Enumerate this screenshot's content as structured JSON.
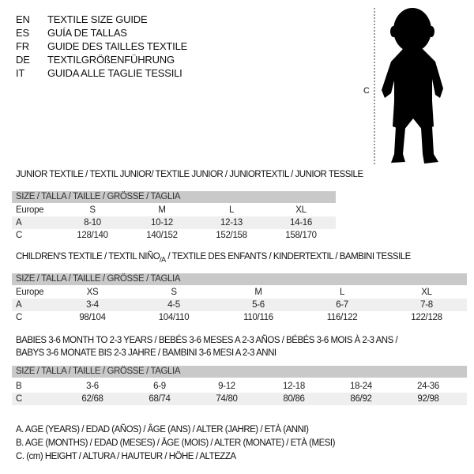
{
  "languages": [
    {
      "code": "EN",
      "title": "TEXTILE SIZE GUIDE"
    },
    {
      "code": "ES",
      "title": "GUÍA DE TALLAS"
    },
    {
      "code": "FR",
      "title": "GUIDE DES TAILLES TEXTILE"
    },
    {
      "code": "DE",
      "title": "TEXTILGRÖßENFÜHRUNG"
    },
    {
      "code": "IT",
      "title": "GUIDA ALLE TAGLIE TESSILI"
    }
  ],
  "figure": {
    "height_label": "C"
  },
  "tables": [
    {
      "title": "JUNIOR TEXTILE / TEXTIL JUNIOR/ TEXTILE JUNIOR / JUNIORTEXTIL / JUNIOR TESSILE",
      "header": "SIZE / TALLA / TAILLE / GRÖSSE / TAGLIA",
      "rows": [
        {
          "label": "Europe",
          "values": [
            "S",
            "M",
            "L",
            "XL"
          ]
        },
        {
          "label": "A",
          "values": [
            "8-10",
            "10-12",
            "12-13",
            "14-16"
          ]
        },
        {
          "label": "C",
          "values": [
            "128/140",
            "140/152",
            "152/158",
            "158/170"
          ]
        }
      ]
    },
    {
      "title_main": "CHILDREN'S TEXTILE / TEXTIL NIÑO",
      "title_sub": "/A",
      "title_rest": " / TEXTILE DES ENFANTS / KINDERTEXTIL / BAMBINI TESSILE",
      "header": "SIZE / TALLA / TAILLE / GRÖSSE / TAGLIA",
      "rows": [
        {
          "label": "Europe",
          "values": [
            "XS",
            "S",
            "M",
            "L",
            "XL"
          ]
        },
        {
          "label": "A",
          "values": [
            "3-4",
            "4-5",
            "5-6",
            "6-7",
            "7-8"
          ]
        },
        {
          "label": "C",
          "values": [
            "98/104",
            "104/110",
            "110/116",
            "116/122",
            "122/128"
          ]
        }
      ]
    },
    {
      "title_line1": "BABIES 3-6 MONTH TO 2-3 YEARS / BEBÉS 3-6 MESES A 2-3 AÑOS / BÉBÉS 3-6 MOIS À 2-3 ANS /",
      "title_line2": "BABYS 3-6 MONATE BIS 2-3 JAHRE / BAMBINI 3-6 MESI A 2-3 ANNI",
      "header": "SIZE / TALLA / TAILLE / GRÖSSE / TAGLIA",
      "rows": [
        {
          "label": "B",
          "values": [
            "3-6",
            "6-9",
            "9-12",
            "12-18",
            "18-24",
            "24-36"
          ]
        },
        {
          "label": "C",
          "values": [
            "62/68",
            "68/74",
            "74/80",
            "80/86",
            "86/92",
            "92/98"
          ]
        }
      ]
    }
  ],
  "legend": [
    "A. AGE (YEARS) / EDAD (AÑOS) / ÂGE (ANS) / ALTER (JAHRE) / ETÀ (ANNI)",
    "B. AGE (MONTHS) / EDAD (MESES) / ÂGE (MOIS) / ALTER (MONATE) / ETÀ (MESI)",
    "C. (cm) HEIGHT / ALTURA / HAUTEUR / HÖHE / ALTEZZA"
  ]
}
